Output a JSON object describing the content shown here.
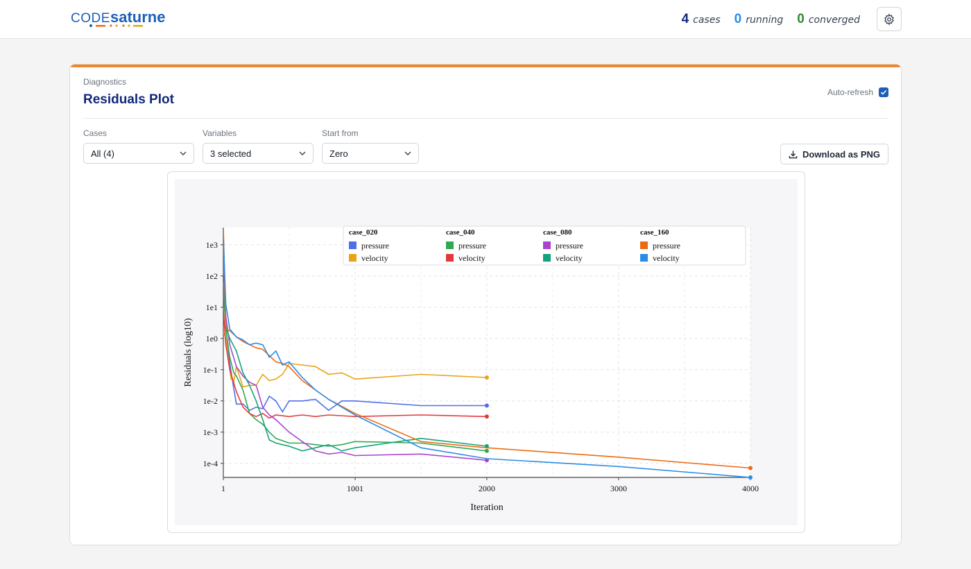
{
  "brand": {
    "word1": "CODE",
    "word2": "saturne"
  },
  "header": {
    "stats": [
      {
        "value": "4",
        "label": "cases",
        "color": "#10277a"
      },
      {
        "value": "0",
        "label": "running",
        "color": "#2b8ce6"
      },
      {
        "value": "0",
        "label": "converged",
        "color": "#2f8a2f"
      }
    ]
  },
  "panel": {
    "eyebrow": "Diagnostics",
    "title": "Residuals Plot",
    "auto_refresh_label": "Auto-refresh",
    "auto_refresh_checked": true
  },
  "filters": {
    "cases_label": "Cases",
    "cases_value": "All (4)",
    "variables_label": "Variables",
    "variables_value": "3 selected",
    "start_label": "Start from",
    "start_value": "Zero"
  },
  "download_label": "Download as PNG",
  "chart_data": {
    "type": "line",
    "xlabel": "Iteration",
    "ylabel": "Residuals (log10)",
    "log_y": true,
    "x_ticks": [
      "1",
      "1001",
      "2000",
      "3000",
      "4000"
    ],
    "x_tick_values": [
      1,
      1001,
      2000,
      3000,
      4000
    ],
    "y_ticks": [
      "1e3",
      "1e2",
      "1e1",
      "1e0",
      "1e-1",
      "1e-2",
      "1e-3",
      "1e-4"
    ],
    "y_tick_values": [
      3,
      2,
      1,
      0,
      -1,
      -2,
      -3,
      -4
    ],
    "xlim": [
      1,
      4000
    ],
    "ylim_log10": [
      -4.45,
      3.55
    ],
    "grid": true,
    "legend_position": "top",
    "legend_groups": [
      {
        "case": "case_020",
        "entries": [
          {
            "name": "pressure",
            "color": "#4f6ee8"
          },
          {
            "name": "velocity",
            "color": "#e8a317"
          }
        ]
      },
      {
        "case": "case_040",
        "entries": [
          {
            "name": "pressure",
            "color": "#2fa84f"
          },
          {
            "name": "velocity",
            "color": "#e23a3a"
          }
        ]
      },
      {
        "case": "case_080",
        "entries": [
          {
            "name": "pressure",
            "color": "#a944cf"
          },
          {
            "name": "velocity",
            "color": "#13a27a"
          }
        ]
      },
      {
        "case": "case_160",
        "entries": [
          {
            "name": "pressure",
            "color": "#ee6a12"
          },
          {
            "name": "velocity",
            "color": "#2b8ce6"
          }
        ]
      }
    ],
    "series": [
      {
        "name": "case_020 pressure",
        "color": "#4f6ee8",
        "x": [
          1,
          20,
          50,
          80,
          100,
          150,
          200,
          250,
          300,
          350,
          400,
          450,
          500,
          600,
          700,
          800,
          900,
          1000,
          1500,
          2000
        ],
        "y": [
          3.4,
          0.4,
          -0.8,
          -1.6,
          -2.1,
          -2.1,
          -2.3,
          -2.2,
          -2.25,
          -1.85,
          -2.0,
          -2.35,
          -2.0,
          -2.0,
          -1.95,
          -2.3,
          -2.0,
          -2.0,
          -2.15,
          -2.15
        ]
      },
      {
        "name": "case_020 velocity",
        "color": "#e8a317",
        "x": [
          1,
          20,
          40,
          60,
          80,
          100,
          150,
          200,
          250,
          300,
          350,
          400,
          450,
          500,
          600,
          700,
          800,
          900,
          1000,
          1500,
          2000
        ],
        "y": [
          0.2,
          0.0,
          -0.7,
          -1.3,
          -1.4,
          -0.9,
          -1.55,
          -1.5,
          -1.5,
          -1.15,
          -1.35,
          -1.3,
          -1.15,
          -0.8,
          -0.85,
          -0.9,
          -1.15,
          -1.1,
          -1.3,
          -1.15,
          -1.25
        ]
      },
      {
        "name": "case_040 pressure",
        "color": "#2fa84f",
        "x": [
          1,
          20,
          50,
          80,
          100,
          150,
          200,
          250,
          300,
          350,
          400,
          500,
          600,
          700,
          800,
          900,
          1000,
          1500,
          2000
        ],
        "y": [
          1.8,
          0.3,
          -0.6,
          -1.1,
          -1.2,
          -1.65,
          -2.4,
          -2.6,
          -2.75,
          -3.0,
          -3.2,
          -3.35,
          -3.35,
          -3.4,
          -3.45,
          -3.4,
          -3.3,
          -3.35,
          -3.6
        ]
      },
      {
        "name": "case_040 velocity",
        "color": "#e23a3a",
        "x": [
          1,
          20,
          50,
          100,
          150,
          200,
          250,
          300,
          350,
          400,
          500,
          600,
          700,
          800,
          1000,
          1500,
          2000
        ],
        "y": [
          0.9,
          -0.2,
          -1.0,
          -1.7,
          -2.2,
          -2.4,
          -2.5,
          -2.4,
          -2.55,
          -2.45,
          -2.5,
          -2.45,
          -2.5,
          -2.45,
          -2.5,
          -2.45,
          -2.5
        ]
      },
      {
        "name": "case_080 pressure",
        "color": "#a944cf",
        "x": [
          1,
          20,
          50,
          100,
          150,
          200,
          250,
          300,
          350,
          400,
          500,
          600,
          700,
          800,
          900,
          1000,
          1500,
          2000
        ],
        "y": [
          2.5,
          0.7,
          -0.2,
          -0.9,
          -1.2,
          -1.4,
          -1.5,
          -2.2,
          -2.45,
          -2.6,
          -3.0,
          -3.3,
          -3.6,
          -3.7,
          -3.65,
          -3.75,
          -3.7,
          -3.9
        ]
      },
      {
        "name": "case_080 velocity",
        "color": "#13a27a",
        "x": [
          1,
          20,
          50,
          100,
          150,
          200,
          250,
          300,
          350,
          400,
          450,
          500,
          600,
          700,
          800,
          900,
          1000,
          1500,
          2000
        ],
        "y": [
          1.5,
          0.4,
          0.0,
          -0.4,
          -1.1,
          -1.5,
          -2.0,
          -2.6,
          -3.25,
          -3.35,
          -3.4,
          -3.45,
          -3.6,
          -3.5,
          -3.4,
          -3.6,
          -3.5,
          -3.2,
          -3.45
        ]
      },
      {
        "name": "case_160 pressure",
        "color": "#ee6a12",
        "x": [
          1,
          20,
          50,
          100,
          150,
          200,
          250,
          300,
          350,
          400,
          450,
          500,
          600,
          800,
          1000,
          1500,
          2000,
          3000,
          4000
        ],
        "y": [
          3.6,
          0.3,
          0.25,
          0.05,
          -0.1,
          -0.2,
          -0.3,
          -0.35,
          -0.55,
          -0.75,
          -0.8,
          -0.9,
          -1.35,
          -1.95,
          -2.4,
          -3.3,
          -3.5,
          -3.8,
          -4.15
        ]
      },
      {
        "name": "case_160 velocity",
        "color": "#2b8ce6",
        "x": [
          1,
          20,
          50,
          100,
          150,
          200,
          250,
          300,
          350,
          400,
          450,
          500,
          550,
          600,
          700,
          800,
          1000,
          1500,
          2000,
          3000,
          4000
        ],
        "y": [
          3.2,
          1.1,
          0.3,
          0.05,
          -0.05,
          -0.2,
          -0.15,
          -0.2,
          -0.6,
          -0.4,
          -0.85,
          -0.75,
          -1.0,
          -1.25,
          -1.65,
          -1.95,
          -2.45,
          -3.5,
          -3.85,
          -4.1,
          -4.45
        ]
      }
    ]
  }
}
